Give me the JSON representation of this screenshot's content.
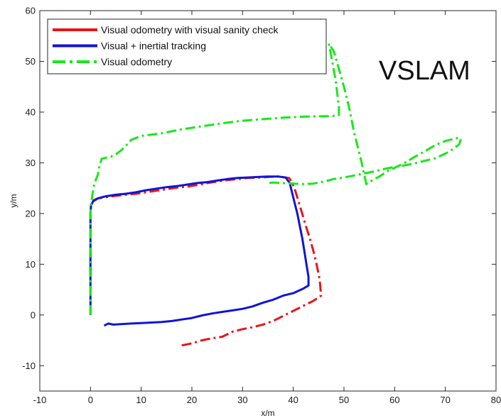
{
  "chart_data": {
    "type": "line",
    "xlabel": "x/m",
    "ylabel": "y/m",
    "xlim": [
      -10,
      80
    ],
    "ylim": [
      -15,
      60
    ],
    "x_ticks": [
      -10,
      0,
      10,
      20,
      30,
      40,
      50,
      60,
      70,
      80
    ],
    "y_ticks": [
      -10,
      0,
      10,
      20,
      30,
      40,
      50,
      60
    ],
    "x_tick_labels": [
      "-10",
      "0",
      "10",
      "20",
      "30",
      "40",
      "50",
      "60",
      "70",
      "80"
    ],
    "y_tick_labels": [
      "-10",
      "0",
      "10",
      "20",
      "30",
      "40",
      "50",
      "60"
    ],
    "grid": false,
    "legend_position": "top-left",
    "annotation": "VSLAM",
    "series": [
      {
        "name": "Visual odometry with visual sanity check",
        "color": "#e8141a",
        "dash": "dashdot",
        "x": [
          18,
          19,
          20,
          22,
          24,
          26,
          27,
          28,
          30,
          32,
          34,
          36,
          38,
          40,
          42,
          44,
          45.5,
          45.2,
          44.6,
          44,
          43.3,
          42.5,
          41.6,
          41,
          40.4,
          39.8,
          39.2,
          37,
          35,
          33,
          31,
          29,
          27,
          25,
          23,
          21,
          19,
          17,
          15,
          13,
          11,
          9,
          7,
          5,
          3,
          1.5,
          0.6,
          0.1,
          0
        ],
        "y": [
          -6,
          -5.8,
          -5.6,
          -5,
          -4.6,
          -4.3,
          -3.8,
          -3.3,
          -2.8,
          -2.4,
          -1.9,
          -1.2,
          -0.2,
          0.8,
          1.8,
          2.8,
          3.8,
          7,
          10,
          12.5,
          15,
          17.5,
          20.5,
          22.5,
          24.5,
          26,
          27,
          27.3,
          27.2,
          27.1,
          27,
          26.8,
          26.6,
          26.3,
          26,
          25.6,
          25.3,
          25.1,
          24.8,
          24.5,
          24.2,
          23.9,
          23.7,
          23.5,
          23.2,
          23,
          22.6,
          21.8,
          20
        ]
      },
      {
        "name": "Visual + inertial tracking",
        "color": "#0f14d8",
        "dash": "solid",
        "x": [
          0,
          0,
          0,
          0,
          0,
          0,
          0.1,
          0.5,
          1.5,
          3,
          5,
          7,
          9,
          11,
          13,
          15,
          17,
          19,
          21,
          23,
          25,
          27,
          29,
          31,
          33,
          35,
          37,
          38.5,
          39.3,
          39.8,
          40.3,
          40.8,
          41.3,
          41.8,
          42.2,
          42.6,
          43,
          43,
          42,
          40,
          38,
          36,
          34,
          32,
          30,
          28,
          26,
          24,
          22,
          20,
          18,
          16,
          14,
          12,
          10,
          8,
          6,
          4.5,
          3.5,
          2.7
        ],
        "y": [
          0,
          4,
          8,
          12,
          16,
          20,
          21.5,
          22.4,
          23,
          23.4,
          23.7,
          23.9,
          24.2,
          24.6,
          24.9,
          25.2,
          25.4,
          25.7,
          26,
          26.2,
          26.5,
          26.8,
          27,
          27.1,
          27.2,
          27.3,
          27.3,
          27.1,
          26,
          24,
          22,
          20,
          17.5,
          15,
          12.5,
          10,
          7.5,
          5.8,
          5.2,
          4.3,
          3.8,
          3,
          2.4,
          1.7,
          1.2,
          0.9,
          0.6,
          0.3,
          -0.1,
          -0.6,
          -0.9,
          -1.2,
          -1.4,
          -1.5,
          -1.6,
          -1.7,
          -1.8,
          -1.9,
          -1.7,
          -2.1
        ]
      },
      {
        "name": "Visual odometry",
        "color": "#18e81a",
        "dash": "dashdot",
        "x": [
          0,
          0,
          -0.1,
          0,
          0,
          0.2,
          0.5,
          0.8,
          1.4,
          1.7,
          2.2,
          3,
          4,
          5,
          6,
          7,
          8,
          10,
          14,
          18,
          22,
          26,
          30,
          34,
          38,
          42,
          46,
          47.5,
          49,
          49,
          48.4,
          47.5,
          47,
          48,
          49,
          50,
          51,
          52,
          53.5,
          54.4,
          55.5,
          57,
          58.5,
          60,
          62,
          64,
          66,
          68,
          70,
          72,
          72.8,
          73,
          72.7,
          71.5,
          70,
          68,
          66,
          64,
          62,
          60,
          58,
          56,
          54,
          52,
          50,
          48,
          46,
          44,
          42,
          40,
          38,
          36,
          35
        ],
        "y": [
          0,
          5,
          10,
          15,
          20,
          22.5,
          24.5,
          26,
          27.5,
          29,
          30.8,
          31,
          31.2,
          31.7,
          32.4,
          33.4,
          34.5,
          35.3,
          35.8,
          36.6,
          37.2,
          37.8,
          38.3,
          38.6,
          38.9,
          39.1,
          39.2,
          39.2,
          39.4,
          41,
          46,
          51,
          53.5,
          52,
          48.5,
          45,
          41,
          36,
          30,
          25.8,
          26.5,
          27.3,
          28.3,
          29,
          30,
          31.2,
          32.3,
          33.5,
          34.3,
          34.8,
          35,
          34.5,
          33.6,
          32.7,
          31.8,
          30.9,
          30.4,
          29.9,
          29.5,
          29.2,
          28.8,
          28.3,
          27.9,
          27.5,
          27.1,
          26.8,
          26.3,
          25.9,
          25.8,
          25.9,
          26,
          26.1,
          26
        ]
      }
    ]
  }
}
